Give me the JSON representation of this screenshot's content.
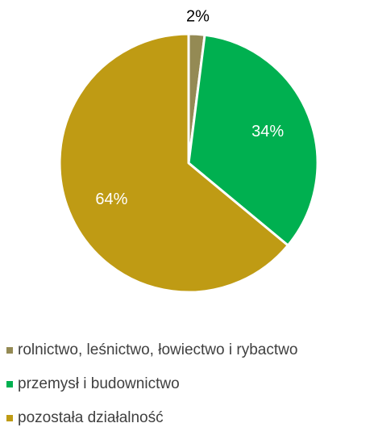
{
  "chart_data": {
    "type": "pie",
    "title": "",
    "legend_position": "bottom",
    "series": [
      {
        "values": [
          2,
          34,
          64
        ],
        "labels": [
          "2%",
          "34%",
          "64%"
        ]
      }
    ],
    "categories": [
      "rolnictwo, leśnictwo, łowiectwo i rybactwo",
      "przemysł i budownictwo",
      "pozostała działalność"
    ],
    "colors": [
      "#948a54",
      "#00b050",
      "#bf9b14"
    ],
    "label_colors": [
      "#000000",
      "#ffffff",
      "#ffffff"
    ]
  }
}
